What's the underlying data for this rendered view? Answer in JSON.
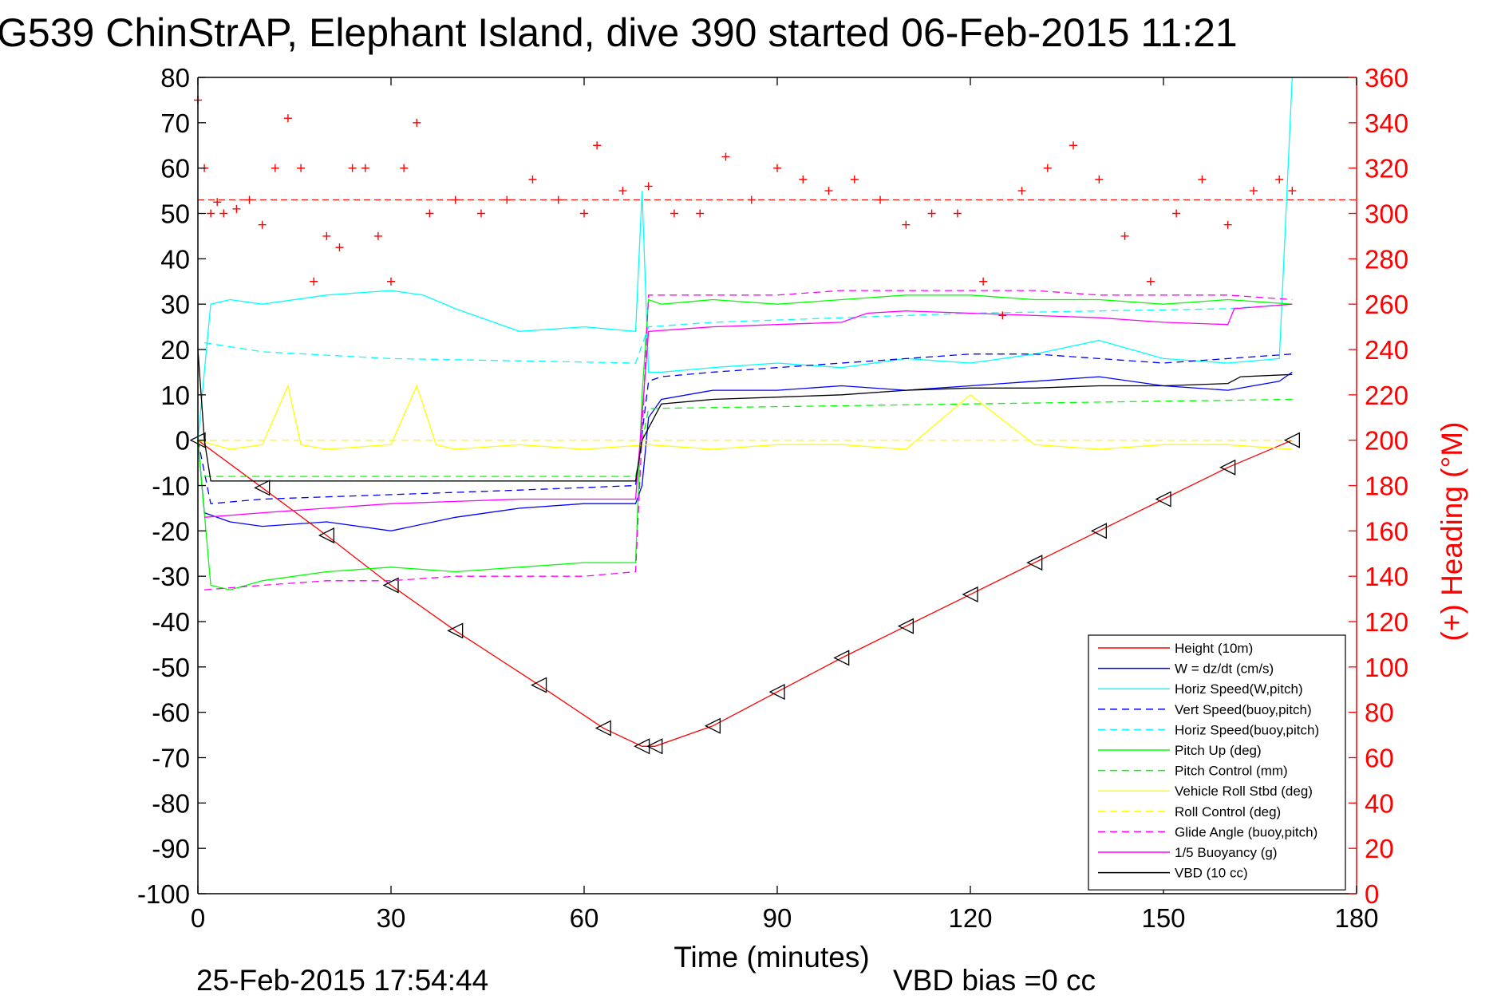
{
  "chart_data": {
    "type": "line",
    "title": "G539 ChinStrAP, Elephant Island, dive 390 started 06-Feb-2015 11:21",
    "xlabel": "Time (minutes)",
    "ylabel_right": "(+) Heading (°M)",
    "xlim": [
      0,
      180
    ],
    "ylim": [
      -100,
      80
    ],
    "ylim_right": [
      0,
      360
    ],
    "x_ticks": [
      0,
      30,
      60,
      90,
      120,
      150,
      180
    ],
    "y_ticks": [
      80,
      70,
      60,
      50,
      40,
      30,
      20,
      10,
      0,
      -10,
      -20,
      -30,
      -40,
      -50,
      -60,
      -70,
      -80,
      -90,
      -100
    ],
    "y_right_ticks": [
      360,
      340,
      320,
      300,
      280,
      260,
      240,
      220,
      200,
      180,
      160,
      140,
      120,
      100,
      80,
      60,
      40,
      20,
      0
    ],
    "grid": true,
    "legend_position": "bottom-right",
    "footer_date": "25-Feb-2015 17:54:44",
    "footer_note": "VBD bias =0 cc",
    "heading_reference": 306,
    "series": [
      {
        "name": "Height (10m)",
        "color": "#ff0000",
        "style": "solid",
        "marker": "triangle",
        "x": [
          0,
          10,
          20,
          30,
          40,
          53,
          63,
          69,
          71,
          80,
          90,
          100,
          110,
          120,
          130,
          140,
          150,
          160,
          170
        ],
        "values": [
          0,
          -10.5,
          -21,
          -32,
          -42,
          -54,
          -63.5,
          -67.5,
          -67.5,
          -63,
          -55.5,
          -48,
          -41,
          -34,
          -27,
          -20,
          -13,
          -6,
          0
        ]
      },
      {
        "name": "W = dz/dt (cm/s)",
        "color": "#0000ff",
        "style": "solid",
        "x": [
          0,
          1,
          5,
          10,
          20,
          30,
          40,
          50,
          60,
          68,
          69,
          70,
          72,
          80,
          90,
          100,
          110,
          120,
          130,
          140,
          150,
          160,
          168,
          170
        ],
        "values": [
          0,
          -16,
          -18,
          -19,
          -18,
          -20,
          -17,
          -15,
          -14,
          -14,
          -10,
          5,
          9,
          11,
          11,
          12,
          11,
          12,
          13,
          14,
          12,
          11,
          13,
          15
        ]
      },
      {
        "name": "Horiz Speed(W,pitch)",
        "color": "#00ffff",
        "style": "solid",
        "x": [
          0,
          2,
          5,
          10,
          20,
          30,
          35,
          40,
          50,
          60,
          68,
          69,
          70,
          72,
          80,
          90,
          100,
          110,
          120,
          130,
          140,
          150,
          160,
          168,
          170
        ],
        "values": [
          0,
          30,
          31,
          30,
          32,
          33,
          32,
          29,
          24,
          25,
          24,
          55,
          15,
          15,
          16,
          17,
          16,
          18,
          17,
          19,
          22,
          18,
          17,
          18,
          80
        ]
      },
      {
        "name": "Vert Speed(buoy,pitch)",
        "color": "#0000ff",
        "style": "dashed",
        "x": [
          0,
          2,
          10,
          30,
          50,
          68,
          70,
          72,
          80,
          90,
          100,
          110,
          120,
          130,
          140,
          150,
          160,
          170
        ],
        "values": [
          0,
          -14,
          -13,
          -12,
          -11,
          -10,
          13,
          14,
          15,
          16,
          17,
          18,
          19,
          19,
          18,
          17,
          18,
          19
        ]
      },
      {
        "name": "Horiz Speed(buoy,pitch)",
        "color": "#00ffff",
        "style": "dashed",
        "x": [
          1,
          10,
          30,
          50,
          68,
          70,
          80,
          100,
          120,
          140,
          160,
          170
        ],
        "values": [
          21.5,
          19.5,
          18,
          17.5,
          17,
          25,
          26,
          27,
          28,
          28.5,
          29,
          30
        ]
      },
      {
        "name": "Pitch Up (deg)",
        "color": "#00ff00",
        "style": "solid",
        "x": [
          0,
          2,
          5,
          10,
          20,
          30,
          40,
          50,
          60,
          68,
          69,
          70,
          72,
          80,
          90,
          100,
          110,
          120,
          130,
          140,
          150,
          160,
          170
        ],
        "values": [
          0,
          -32,
          -33,
          -31,
          -29,
          -28,
          -29,
          -28,
          -27,
          -27,
          10,
          31,
          30,
          31,
          30,
          31,
          32,
          32,
          31,
          31,
          30,
          31,
          30
        ]
      },
      {
        "name": "Pitch Control (mm)",
        "color": "#00ff00",
        "style": "dashed",
        "x": [
          1,
          68,
          70,
          170
        ],
        "values": [
          -8,
          -8,
          7,
          9
        ]
      },
      {
        "name": "Vehicle Roll Stbd (deg)",
        "color": "#ffff00",
        "style": "solid",
        "x": [
          0,
          5,
          10,
          14,
          16,
          20,
          30,
          34,
          37,
          40,
          50,
          60,
          70,
          80,
          90,
          100,
          110,
          120,
          130,
          140,
          150,
          160,
          170
        ],
        "values": [
          0,
          -2,
          -1,
          12,
          -1,
          -2,
          -1,
          12,
          -1,
          -2,
          -1,
          -2,
          -1,
          -2,
          -1,
          -1,
          -2,
          10,
          -1,
          -2,
          -1,
          -1,
          -2
        ]
      },
      {
        "name": "Roll Control (deg)",
        "color": "#ffff00",
        "style": "dashed",
        "x": [
          0,
          10,
          20,
          30,
          40,
          50,
          60,
          70,
          80,
          90,
          100,
          110,
          120,
          130,
          140,
          150,
          160,
          170
        ],
        "values": [
          0,
          0,
          0,
          0,
          0,
          0,
          0,
          0,
          0,
          0,
          0,
          0,
          0,
          0,
          0,
          0,
          0,
          0
        ]
      },
      {
        "name": "Glide Angle (buoy,pitch)",
        "color": "#ff00ff",
        "style": "dashed",
        "x": [
          1,
          10,
          20,
          30,
          40,
          50,
          60,
          68,
          70,
          80,
          90,
          100,
          110,
          120,
          130,
          140,
          150,
          160,
          170
        ],
        "values": [
          -33,
          -32,
          -31,
          -31,
          -30,
          -30,
          -30,
          -29,
          32,
          32,
          32,
          33,
          33,
          33,
          33,
          32,
          32,
          32,
          31
        ]
      },
      {
        "name": "1/5 Buoyancy (g)",
        "color": "#ff00ff",
        "style": "solid",
        "x": [
          1,
          10,
          20,
          30,
          40,
          50,
          60,
          68,
          70,
          80,
          90,
          100,
          104,
          110,
          120,
          130,
          140,
          150,
          160,
          161,
          170
        ],
        "values": [
          -17,
          -16,
          -15,
          -14,
          -13.5,
          -13,
          -13,
          -13,
          24,
          25,
          25.5,
          26,
          28,
          28.5,
          28,
          27.5,
          27,
          26,
          25.5,
          29,
          30
        ]
      },
      {
        "name": "VBD (10 cc)",
        "color": "#000000",
        "style": "solid",
        "x": [
          0,
          1,
          2,
          68,
          69,
          72,
          80,
          90,
          100,
          110,
          120,
          130,
          140,
          150,
          160,
          162,
          170
        ],
        "values": [
          20,
          0,
          -9,
          -9,
          0,
          8,
          9,
          9.5,
          10,
          11,
          11.5,
          11.5,
          12,
          12,
          12.5,
          14,
          14.5
        ]
      },
      {
        "name": "(+) Heading",
        "color": "#ff0000",
        "style": "markers",
        "marker": "plus",
        "axis": "right",
        "x": [
          0,
          1,
          2,
          3,
          4,
          6,
          8,
          10,
          12,
          14,
          16,
          18,
          20,
          22,
          24,
          26,
          28,
          30,
          32,
          34,
          36,
          40,
          44,
          48,
          52,
          56,
          60,
          62,
          66,
          70,
          74,
          78,
          82,
          86,
          90,
          94,
          98,
          102,
          106,
          110,
          114,
          118,
          122,
          125,
          128,
          132,
          136,
          140,
          144,
          148,
          152,
          156,
          160,
          164,
          168,
          170
        ],
        "values": [
          350,
          320,
          300,
          305,
          300,
          302,
          306,
          295,
          320,
          342,
          320,
          270,
          290,
          285,
          320,
          320,
          290,
          270,
          320,
          340,
          300,
          306,
          300,
          306,
          315,
          306,
          300,
          330,
          310,
          312,
          300,
          300,
          325,
          306,
          320,
          315,
          310,
          315,
          306,
          295,
          300,
          300,
          270,
          255,
          310,
          320,
          330,
          315,
          290,
          270,
          300,
          315,
          295,
          310,
          315,
          310
        ]
      }
    ]
  }
}
